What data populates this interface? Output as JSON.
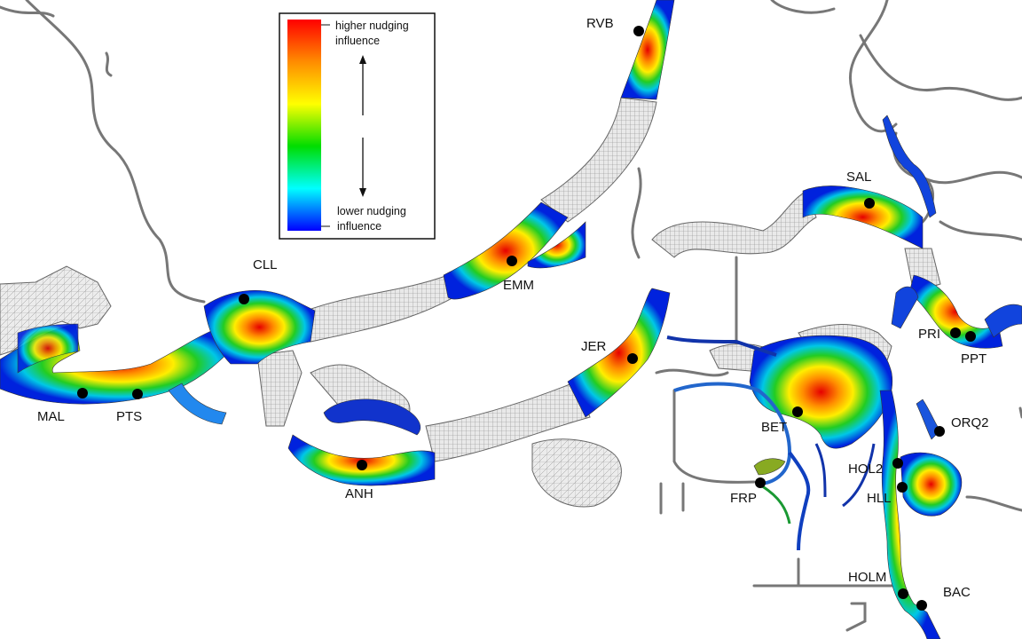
{
  "legend": {
    "high_line1": "higher nudging",
    "high_line2": "influence",
    "low_line1": "lower nudging",
    "low_line2": "influence",
    "gradient_colors": [
      "#ff0000",
      "#ff8c00",
      "#ffff00",
      "#00dd00",
      "#00ffff",
      "#0000ff"
    ]
  },
  "stations": [
    {
      "id": "RVB",
      "label": "RVB"
    },
    {
      "id": "CLL",
      "label": "CLL"
    },
    {
      "id": "EMM",
      "label": "EMM"
    },
    {
      "id": "SAL",
      "label": "SAL"
    },
    {
      "id": "JER",
      "label": "JER"
    },
    {
      "id": "PRI",
      "label": "PRI"
    },
    {
      "id": "PPT",
      "label": "PPT"
    },
    {
      "id": "MAL",
      "label": "MAL"
    },
    {
      "id": "PTS",
      "label": "PTS"
    },
    {
      "id": "BET",
      "label": "BET"
    },
    {
      "id": "ORQ2",
      "label": "ORQ2"
    },
    {
      "id": "ANH",
      "label": "ANH"
    },
    {
      "id": "HOL2",
      "label": "HOL2"
    },
    {
      "id": "FRP",
      "label": "FRP"
    },
    {
      "id": "HLL",
      "label": "HLL"
    },
    {
      "id": "HOLM",
      "label": "HOLM"
    },
    {
      "id": "BAC",
      "label": "BAC"
    }
  ]
}
